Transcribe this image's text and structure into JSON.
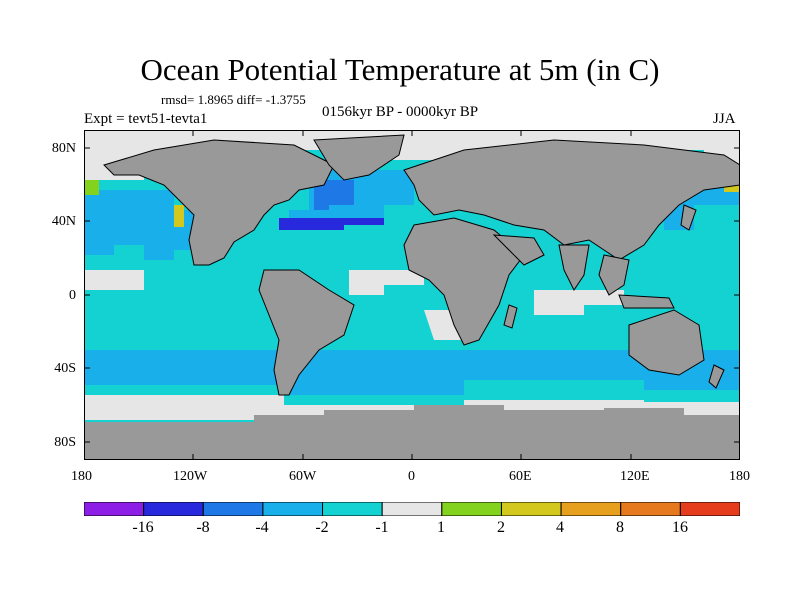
{
  "plot": {
    "title": "Ocean Potential Temperature at 5m (in C)",
    "stats": "rmsd= 1.8965 diff= -1.3755",
    "experiment": "Expt = tevt51-tevta1",
    "period": "0156kyr BP - 0000kyr BP",
    "season": "JJA"
  },
  "axes": {
    "lat_ticks": [
      "80N",
      "40N",
      "0",
      "40S",
      "80S"
    ],
    "lon_ticks": [
      "180",
      "120W",
      "60W",
      "0",
      "60E",
      "120E",
      "180"
    ]
  },
  "colors": {
    "land": "#999999",
    "missing": "#e6e6e6"
  },
  "colorbar": {
    "boxes": [
      "#8c1ee6",
      "#2828dc",
      "#1e78e6",
      "#19afeb",
      "#14d2d2",
      "#e6e6e6",
      "#82d21e",
      "#d2c81e",
      "#e6a01e",
      "#e6781e",
      "#e63c1e"
    ],
    "labels": [
      "-16",
      "-8",
      "-4",
      "-2",
      "-1",
      "1",
      "2",
      "4",
      "8",
      "16"
    ]
  }
}
